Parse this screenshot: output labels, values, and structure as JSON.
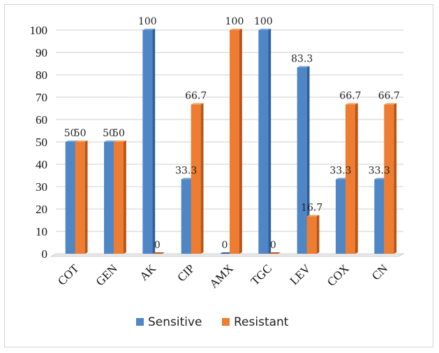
{
  "chart_data": {
    "type": "bar",
    "categories": [
      "COT",
      "GEN",
      "AK",
      "CIP",
      "AMX",
      "TGC",
      "LEV",
      "COX",
      "CN"
    ],
    "series": [
      {
        "name": "Sensitive",
        "values": [
          50,
          50,
          100,
          33.3,
          0,
          100,
          83.3,
          33.3,
          33.3
        ],
        "labels": [
          "50",
          "50",
          "100",
          "33.3",
          "0",
          "100",
          "83.3",
          "33.3",
          "33.3"
        ],
        "color": "#4f86c6",
        "side_color": "#2e5f9a",
        "top_color": "#7aa6dc"
      },
      {
        "name": "Resistant",
        "values": [
          50,
          50,
          0,
          66.7,
          100,
          0,
          16.7,
          66.7,
          66.7
        ],
        "labels": [
          "50",
          "50",
          "0",
          "66.7",
          "100",
          "0",
          "16.7",
          "66.7",
          "66.7"
        ],
        "color": "#ee7d31",
        "side_color": "#b5561a",
        "top_color": "#f5a066"
      }
    ],
    "title": "",
    "xlabel": "",
    "ylabel": "",
    "ylim": [
      0,
      100
    ],
    "yticks": [
      "0",
      "10",
      "20",
      "30",
      "40",
      "50",
      "60",
      "70",
      "80",
      "90",
      "100"
    ],
    "grid": true,
    "legend": "bottom"
  }
}
